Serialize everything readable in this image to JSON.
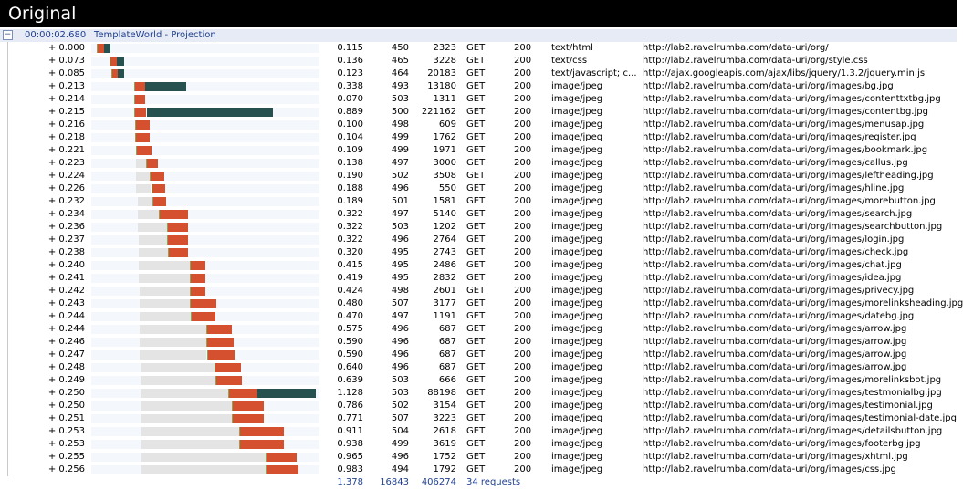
{
  "window": {
    "title": "Original"
  },
  "page": {
    "elapsed": "00:00:02.680",
    "name": "TemplateWorld - Projection",
    "expand_symbol": "−"
  },
  "totals": {
    "time": "1.378",
    "request": "16843",
    "size": "406274",
    "count": "34 requests"
  },
  "timeline": {
    "scale_max_seconds": 1.3
  },
  "colors": {
    "receive": "#d5502f",
    "download": "#26514f",
    "wait": "#e4e4e4",
    "header_bg": "#e6ebf5"
  },
  "rows": [
    {
      "start": "+ 0.000",
      "time": "0.115",
      "req": "450",
      "size": "2323",
      "method": "GET",
      "status": "200",
      "type": "text/html",
      "url": "http://lab2.ravelrumba.com/data-uri/org/",
      "bar": {
        "offset": 0.0,
        "wait": 0.0,
        "recv": 0.04,
        "dl": 0.035
      }
    },
    {
      "start": "+ 0.073",
      "time": "0.136",
      "req": "465",
      "size": "3228",
      "method": "GET",
      "status": "200",
      "type": "text/css",
      "url": "http://lab2.ravelrumba.com/data-uri/org/style.css",
      "bar": {
        "offset": 0.073,
        "wait": 0.0,
        "recv": 0.04,
        "dl": 0.04
      }
    },
    {
      "start": "+ 0.085",
      "time": "0.123",
      "req": "464",
      "size": "20183",
      "method": "GET",
      "status": "200",
      "type": "text/javascript; c...",
      "url": "http://ajax.googleapis.com/ajax/libs/jquery/1.3.2/jquery.min.js",
      "bar": {
        "offset": 0.085,
        "wait": 0.0,
        "recv": 0.035,
        "dl": 0.035
      }
    },
    {
      "start": "+ 0.213",
      "time": "0.338",
      "req": "493",
      "size": "13180",
      "method": "GET",
      "status": "200",
      "type": "image/jpeg",
      "url": "http://lab2.ravelrumba.com/data-uri/org/images/bg.jpg",
      "bar": {
        "offset": 0.213,
        "wait": 0.0,
        "recv": 0.065,
        "dl": 0.235
      }
    },
    {
      "start": "+ 0.214",
      "time": "0.070",
      "req": "503",
      "size": "1311",
      "method": "GET",
      "status": "200",
      "type": "image/jpeg",
      "url": "http://lab2.ravelrumba.com/data-uri/org/images/contenttxtbg.jpg",
      "bar": {
        "offset": 0.214,
        "wait": 0.0,
        "recv": 0.06,
        "dl": 0.0
      }
    },
    {
      "start": "+ 0.215",
      "time": "0.889",
      "req": "500",
      "size": "221162",
      "method": "GET",
      "status": "200",
      "type": "image/jpeg",
      "url": "http://lab2.ravelrumba.com/data-uri/org/images/contentbg.jpg",
      "bar": {
        "offset": 0.215,
        "wait": 0.0,
        "recv": 0.07,
        "dl": 0.72
      }
    },
    {
      "start": "+ 0.216",
      "time": "0.100",
      "req": "498",
      "size": "609",
      "method": "GET",
      "status": "200",
      "type": "image/jpeg",
      "url": "http://lab2.ravelrumba.com/data-uri/org/images/menusap.jpg",
      "bar": {
        "offset": 0.216,
        "wait": 0.0,
        "recv": 0.085,
        "dl": 0.0
      }
    },
    {
      "start": "+ 0.218",
      "time": "0.104",
      "req": "499",
      "size": "1762",
      "method": "GET",
      "status": "200",
      "type": "image/jpeg",
      "url": "http://lab2.ravelrumba.com/data-uri/org/images/register.jpg",
      "bar": {
        "offset": 0.218,
        "wait": 0.0,
        "recv": 0.085,
        "dl": 0.0
      }
    },
    {
      "start": "+ 0.221",
      "time": "0.109",
      "req": "499",
      "size": "1971",
      "method": "GET",
      "status": "200",
      "type": "image/jpeg",
      "url": "http://lab2.ravelrumba.com/data-uri/org/images/bookmark.jpg",
      "bar": {
        "offset": 0.221,
        "wait": 0.0,
        "recv": 0.09,
        "dl": 0.0
      }
    },
    {
      "start": "+ 0.223",
      "time": "0.138",
      "req": "497",
      "size": "3000",
      "method": "GET",
      "status": "200",
      "type": "image/jpeg",
      "url": "http://lab2.ravelrumba.com/data-uri/org/images/callus.jpg",
      "bar": {
        "offset": 0.223,
        "wait": 0.06,
        "recv": 0.065,
        "dl": 0.0
      }
    },
    {
      "start": "+ 0.224",
      "time": "0.190",
      "req": "502",
      "size": "3508",
      "method": "GET",
      "status": "200",
      "type": "image/jpeg",
      "url": "http://lab2.ravelrumba.com/data-uri/org/images/leftheading.jpg",
      "bar": {
        "offset": 0.224,
        "wait": 0.08,
        "recv": 0.085,
        "dl": 0.0
      }
    },
    {
      "start": "+ 0.226",
      "time": "0.188",
      "req": "496",
      "size": "550",
      "method": "GET",
      "status": "200",
      "type": "image/jpeg",
      "url": "http://lab2.ravelrumba.com/data-uri/org/images/hline.jpg",
      "bar": {
        "offset": 0.226,
        "wait": 0.085,
        "recv": 0.08,
        "dl": 0.0
      }
    },
    {
      "start": "+ 0.232",
      "time": "0.189",
      "req": "501",
      "size": "1581",
      "method": "GET",
      "status": "200",
      "type": "image/jpeg",
      "url": "http://lab2.ravelrumba.com/data-uri/org/images/morebutton.jpg",
      "bar": {
        "offset": 0.232,
        "wait": 0.085,
        "recv": 0.08,
        "dl": 0.0
      }
    },
    {
      "start": "+ 0.234",
      "time": "0.322",
      "req": "497",
      "size": "5140",
      "method": "GET",
      "status": "200",
      "type": "image/jpeg",
      "url": "http://lab2.ravelrumba.com/data-uri/org/images/search.jpg",
      "bar": {
        "offset": 0.234,
        "wait": 0.12,
        "recv": 0.165,
        "dl": 0.0
      }
    },
    {
      "start": "+ 0.236",
      "time": "0.322",
      "req": "503",
      "size": "1202",
      "method": "GET",
      "status": "200",
      "type": "image/jpeg",
      "url": "http://lab2.ravelrumba.com/data-uri/org/images/searchbutton.jpg",
      "bar": {
        "offset": 0.236,
        "wait": 0.165,
        "recv": 0.12,
        "dl": 0.0
      }
    },
    {
      "start": "+ 0.237",
      "time": "0.322",
      "req": "496",
      "size": "2764",
      "method": "GET",
      "status": "200",
      "type": "image/jpeg",
      "url": "http://lab2.ravelrumba.com/data-uri/org/images/login.jpg",
      "bar": {
        "offset": 0.237,
        "wait": 0.165,
        "recv": 0.12,
        "dl": 0.0
      }
    },
    {
      "start": "+ 0.238",
      "time": "0.320",
      "req": "495",
      "size": "2743",
      "method": "GET",
      "status": "200",
      "type": "image/jpeg",
      "url": "http://lab2.ravelrumba.com/data-uri/org/images/check.jpg",
      "bar": {
        "offset": 0.238,
        "wait": 0.165,
        "recv": 0.115,
        "dl": 0.0
      }
    },
    {
      "start": "+ 0.240",
      "time": "0.415",
      "req": "495",
      "size": "2486",
      "method": "GET",
      "status": "200",
      "type": "image/jpeg",
      "url": "http://lab2.ravelrumba.com/data-uri/org/images/chat.jpg",
      "bar": {
        "offset": 0.24,
        "wait": 0.29,
        "recv": 0.09,
        "dl": 0.0
      }
    },
    {
      "start": "+ 0.241",
      "time": "0.419",
      "req": "495",
      "size": "2832",
      "method": "GET",
      "status": "200",
      "type": "image/jpeg",
      "url": "http://lab2.ravelrumba.com/data-uri/org/images/idea.jpg",
      "bar": {
        "offset": 0.241,
        "wait": 0.29,
        "recv": 0.09,
        "dl": 0.0
      }
    },
    {
      "start": "+ 0.242",
      "time": "0.424",
      "req": "498",
      "size": "2601",
      "method": "GET",
      "status": "200",
      "type": "image/jpeg",
      "url": "http://lab2.ravelrumba.com/data-uri/org/images/privecy.jpg",
      "bar": {
        "offset": 0.242,
        "wait": 0.29,
        "recv": 0.09,
        "dl": 0.0
      }
    },
    {
      "start": "+ 0.243",
      "time": "0.480",
      "req": "507",
      "size": "3177",
      "method": "GET",
      "status": "200",
      "type": "image/jpeg",
      "url": "http://lab2.ravelrumba.com/data-uri/org/images/morelinksheading.jpg",
      "bar": {
        "offset": 0.243,
        "wait": 0.29,
        "recv": 0.15,
        "dl": 0.0
      }
    },
    {
      "start": "+ 0.244",
      "time": "0.470",
      "req": "497",
      "size": "1191",
      "method": "GET",
      "status": "200",
      "type": "image/jpeg",
      "url": "http://lab2.ravelrumba.com/data-uri/org/images/datebg.jpg",
      "bar": {
        "offset": 0.244,
        "wait": 0.29,
        "recv": 0.14,
        "dl": 0.0
      }
    },
    {
      "start": "+ 0.244",
      "time": "0.575",
      "req": "496",
      "size": "687",
      "method": "GET",
      "status": "200",
      "type": "image/jpeg",
      "url": "http://lab2.ravelrumba.com/data-uri/org/images/arrow.jpg",
      "bar": {
        "offset": 0.244,
        "wait": 0.38,
        "recv": 0.145,
        "dl": 0.0
      }
    },
    {
      "start": "+ 0.246",
      "time": "0.590",
      "req": "496",
      "size": "687",
      "method": "GET",
      "status": "200",
      "type": "image/jpeg",
      "url": "http://lab2.ravelrumba.com/data-uri/org/images/arrow.jpg",
      "bar": {
        "offset": 0.246,
        "wait": 0.38,
        "recv": 0.155,
        "dl": 0.0
      }
    },
    {
      "start": "+ 0.247",
      "time": "0.590",
      "req": "496",
      "size": "687",
      "method": "GET",
      "status": "200",
      "type": "image/jpeg",
      "url": "http://lab2.ravelrumba.com/data-uri/org/images/arrow.jpg",
      "bar": {
        "offset": 0.247,
        "wait": 0.38,
        "recv": 0.155,
        "dl": 0.0
      }
    },
    {
      "start": "+ 0.248",
      "time": "0.640",
      "req": "496",
      "size": "687",
      "method": "GET",
      "status": "200",
      "type": "image/jpeg",
      "url": "http://lab2.ravelrumba.com/data-uri/org/images/arrow.jpg",
      "bar": {
        "offset": 0.248,
        "wait": 0.425,
        "recv": 0.15,
        "dl": 0.0
      }
    },
    {
      "start": "+ 0.249",
      "time": "0.639",
      "req": "503",
      "size": "666",
      "method": "GET",
      "status": "200",
      "type": "image/jpeg",
      "url": "http://lab2.ravelrumba.com/data-uri/org/images/morelinksbot.jpg",
      "bar": {
        "offset": 0.249,
        "wait": 0.425,
        "recv": 0.15,
        "dl": 0.0
      }
    },
    {
      "start": "+ 0.250",
      "time": "1.128",
      "req": "503",
      "size": "88198",
      "method": "GET",
      "status": "200",
      "type": "image/jpeg",
      "url": "http://lab2.ravelrumba.com/data-uri/org/images/testmonialbg.jpg",
      "bar": {
        "offset": 0.25,
        "wait": 0.5,
        "recv": 0.165,
        "dl": 0.335
      }
    },
    {
      "start": "+ 0.250",
      "time": "0.786",
      "req": "502",
      "size": "3154",
      "method": "GET",
      "status": "200",
      "type": "image/jpeg",
      "url": "http://lab2.ravelrumba.com/data-uri/org/images/testimonial.jpg",
      "bar": {
        "offset": 0.25,
        "wait": 0.52,
        "recv": 0.18,
        "dl": 0.0
      }
    },
    {
      "start": "+ 0.251",
      "time": "0.771",
      "req": "507",
      "size": "3223",
      "method": "GET",
      "status": "200",
      "type": "image/jpeg",
      "url": "http://lab2.ravelrumba.com/data-uri/org/images/testimonial-date.jpg",
      "bar": {
        "offset": 0.251,
        "wait": 0.52,
        "recv": 0.18,
        "dl": 0.0
      }
    },
    {
      "start": "+ 0.253",
      "time": "0.911",
      "req": "504",
      "size": "2618",
      "method": "GET",
      "status": "200",
      "type": "image/jpeg",
      "url": "http://lab2.ravelrumba.com/data-uri/org/images/detailsbutton.jpg",
      "bar": {
        "offset": 0.253,
        "wait": 0.56,
        "recv": 0.255,
        "dl": 0.0
      }
    },
    {
      "start": "+ 0.253",
      "time": "0.938",
      "req": "499",
      "size": "3619",
      "method": "GET",
      "status": "200",
      "type": "image/jpeg",
      "url": "http://lab2.ravelrumba.com/data-uri/org/images/footerbg.jpg",
      "bar": {
        "offset": 0.253,
        "wait": 0.56,
        "recv": 0.255,
        "dl": 0.0
      }
    },
    {
      "start": "+ 0.255",
      "time": "0.965",
      "req": "496",
      "size": "1752",
      "method": "GET",
      "status": "200",
      "type": "image/jpeg",
      "url": "http://lab2.ravelrumba.com/data-uri/org/images/xhtml.jpg",
      "bar": {
        "offset": 0.255,
        "wait": 0.705,
        "recv": 0.175,
        "dl": 0.0
      }
    },
    {
      "start": "+ 0.256",
      "time": "0.983",
      "req": "494",
      "size": "1792",
      "method": "GET",
      "status": "200",
      "type": "image/jpeg",
      "url": "http://lab2.ravelrumba.com/data-uri/org/images/css.jpg",
      "bar": {
        "offset": 0.256,
        "wait": 0.705,
        "recv": 0.185,
        "dl": 0.0
      }
    }
  ]
}
